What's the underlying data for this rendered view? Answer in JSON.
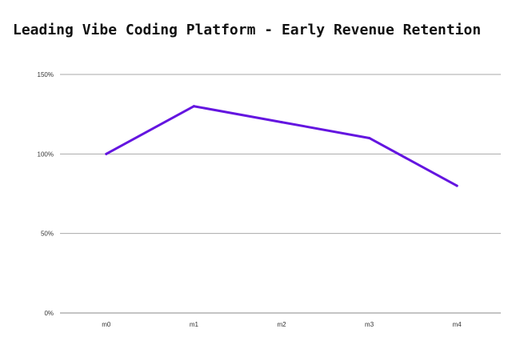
{
  "chart_data": {
    "type": "line",
    "title": "Leading Vibe Coding Platform - Early Revenue Retention",
    "xlabel": "",
    "ylabel": "",
    "categories": [
      "m0",
      "m1",
      "m2",
      "m3",
      "m4"
    ],
    "series": [
      {
        "values": [
          100,
          130,
          120,
          110,
          80
        ],
        "color": "#6415E0"
      }
    ],
    "ylim": [
      0,
      150
    ],
    "yticks": [
      0,
      50,
      100,
      150
    ],
    "ytick_labels": [
      "0%",
      "50%",
      "100%",
      "150%"
    ],
    "grid": "horizontal",
    "legend": "none"
  }
}
